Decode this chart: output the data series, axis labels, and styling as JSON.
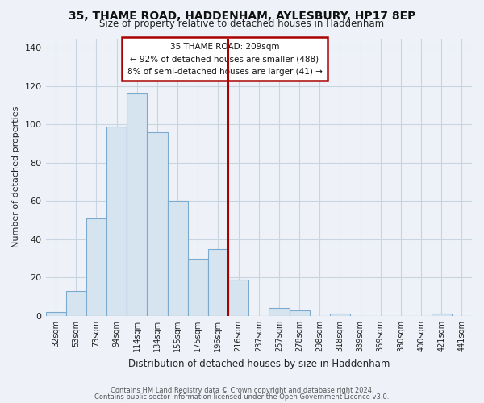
{
  "title": "35, THAME ROAD, HADDENHAM, AYLESBURY, HP17 8EP",
  "subtitle": "Size of property relative to detached houses in Haddenham",
  "xlabel": "Distribution of detached houses by size in Haddenham",
  "ylabel": "Number of detached properties",
  "bar_color": "#d6e4f0",
  "bar_edge_color": "#7aaace",
  "categories": [
    "32sqm",
    "53sqm",
    "73sqm",
    "94sqm",
    "114sqm",
    "134sqm",
    "155sqm",
    "175sqm",
    "196sqm",
    "216sqm",
    "237sqm",
    "257sqm",
    "278sqm",
    "298sqm",
    "318sqm",
    "339sqm",
    "359sqm",
    "380sqm",
    "400sqm",
    "421sqm",
    "441sqm"
  ],
  "values": [
    2,
    13,
    51,
    99,
    116,
    96,
    60,
    30,
    35,
    19,
    0,
    4,
    3,
    0,
    1,
    0,
    0,
    0,
    0,
    1,
    0
  ],
  "ylim": [
    0,
    145
  ],
  "yticks": [
    0,
    20,
    40,
    60,
    80,
    100,
    120,
    140
  ],
  "property_line_color": "#aa0000",
  "annotation_title": "35 THAME ROAD: 209sqm",
  "annotation_line1": "← 92% of detached houses are smaller (488)",
  "annotation_line2": "8% of semi-detached houses are larger (41) →",
  "annotation_box_color": "#ffffff",
  "annotation_box_edge": "#aa0000",
  "footer_line1": "Contains HM Land Registry data © Crown copyright and database right 2024.",
  "footer_line2": "Contains public sector information licensed under the Open Government Licence v3.0.",
  "background_color": "#eef2f8",
  "plot_bg_color": "#eef2f8",
  "grid_color": "#c8d4e0"
}
